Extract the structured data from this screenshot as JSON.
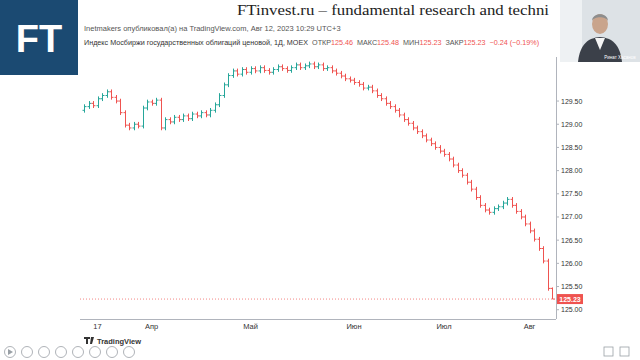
{
  "page": {
    "logo": "FT",
    "title": "FTinvest.ru – fundamental research and techni",
    "speaker": "Ринат Хасанов",
    "watermark": "TradingView"
  },
  "chart_data": {
    "type": "ohlc",
    "title": "Индекс Мосбиржи государственных облигаций ценовой, 1Д, MOEX",
    "subtitle": "Inetmakers опубликовал(а) на TradingView.com, Авг 12, 2023 10:29 UTC+3",
    "ohlc_labels": [
      "ОТКР",
      "МАКС",
      "МИН",
      "ЗАКР"
    ],
    "change_label": "−0.24 (−0.19%)",
    "grid": false,
    "categories": [
      null,
      null,
      null,
      "17",
      null,
      null,
      null,
      null,
      null,
      null,
      null,
      null,
      null,
      null,
      null,
      "Апр",
      null,
      null,
      null,
      null,
      null,
      null,
      null,
      null,
      null,
      null,
      null,
      null,
      null,
      null,
      null,
      null,
      null,
      null,
      null,
      null,
      null,
      "Май",
      null,
      null,
      null,
      null,
      null,
      null,
      null,
      null,
      null,
      null,
      null,
      null,
      null,
      null,
      null,
      null,
      null,
      null,
      null,
      null,
      null,
      null,
      "Июн",
      null,
      null,
      null,
      null,
      null,
      null,
      null,
      null,
      null,
      null,
      null,
      null,
      null,
      null,
      null,
      null,
      null,
      null,
      null,
      "Июл",
      null,
      null,
      null,
      null,
      null,
      null,
      null,
      null,
      null,
      null,
      null,
      null,
      null,
      null,
      null,
      null,
      null,
      null,
      "Авг",
      null,
      null,
      null,
      null,
      null
    ],
    "open": [
      129.3,
      129.38,
      129.45,
      129.4,
      129.55,
      129.62,
      129.7,
      129.58,
      129.5,
      129.25,
      128.98,
      128.92,
      129.0,
      128.96,
      129.35,
      129.48,
      129.45,
      129.52,
      128.92,
      129.1,
      129.05,
      129.15,
      129.1,
      129.18,
      129.12,
      129.22,
      129.18,
      129.25,
      129.2,
      129.3,
      129.42,
      129.62,
      129.85,
      130.05,
      130.15,
      130.08,
      130.18,
      130.12,
      130.2,
      130.15,
      130.22,
      130.16,
      130.12,
      130.18,
      130.24,
      130.2,
      130.16,
      130.22,
      130.28,
      130.22,
      130.26,
      130.3,
      130.24,
      130.28,
      130.2,
      130.22,
      130.15,
      130.1,
      130.04,
      129.98,
      129.95,
      129.9,
      129.86,
      129.78,
      129.8,
      129.72,
      129.62,
      129.55,
      129.45,
      129.38,
      129.3,
      129.2,
      129.1,
      129.02,
      128.92,
      128.84,
      128.75,
      128.66,
      128.58,
      128.5,
      128.42,
      128.35,
      128.25,
      128.12,
      128.0,
      127.9,
      127.75,
      127.6,
      127.42,
      127.25,
      127.15,
      127.1,
      127.18,
      127.22,
      127.3,
      127.38,
      127.25,
      127.12,
      127.0,
      126.85,
      126.7,
      126.52,
      126.32,
      126.05,
      125.46
    ],
    "high": [
      129.43,
      129.5,
      129.5,
      129.6,
      129.67,
      129.75,
      129.75,
      129.63,
      129.55,
      129.3,
      129.03,
      129.05,
      129.05,
      129.4,
      129.53,
      129.53,
      129.57,
      129.57,
      129.15,
      129.15,
      129.2,
      129.2,
      129.23,
      129.23,
      129.27,
      129.27,
      129.3,
      129.3,
      129.35,
      129.47,
      129.67,
      129.9,
      130.1,
      130.2,
      130.2,
      130.23,
      130.23,
      130.25,
      130.25,
      130.27,
      130.27,
      130.21,
      130.23,
      130.29,
      130.29,
      130.25,
      130.27,
      130.33,
      130.33,
      130.31,
      130.35,
      130.35,
      130.33,
      130.33,
      130.27,
      130.27,
      130.2,
      130.15,
      130.09,
      130.03,
      130.0,
      129.95,
      129.91,
      129.85,
      129.85,
      129.77,
      129.67,
      129.6,
      129.5,
      129.43,
      129.35,
      129.25,
      129.15,
      129.07,
      128.97,
      128.89,
      128.8,
      128.71,
      128.63,
      128.55,
      128.47,
      128.4,
      128.3,
      128.17,
      128.05,
      127.95,
      127.8,
      127.65,
      127.47,
      127.3,
      127.2,
      127.23,
      127.27,
      127.35,
      127.43,
      127.43,
      127.3,
      127.17,
      127.05,
      126.9,
      126.75,
      126.57,
      126.37,
      126.1,
      125.48
    ],
    "low": [
      129.25,
      129.33,
      129.35,
      129.35,
      129.5,
      129.57,
      129.53,
      129.45,
      129.2,
      128.93,
      128.87,
      128.87,
      128.91,
      128.91,
      129.3,
      129.4,
      129.4,
      128.87,
      128.87,
      129.0,
      129.0,
      129.05,
      129.05,
      129.07,
      129.07,
      129.13,
      129.13,
      129.15,
      129.15,
      129.25,
      129.37,
      129.57,
      129.8,
      130.0,
      130.03,
      130.03,
      130.07,
      130.07,
      130.1,
      130.1,
      130.11,
      130.07,
      130.07,
      130.13,
      130.15,
      130.11,
      130.11,
      130.17,
      130.17,
      130.17,
      130.21,
      130.19,
      130.19,
      130.15,
      130.15,
      130.1,
      130.05,
      129.99,
      129.93,
      129.9,
      129.85,
      129.81,
      129.73,
      129.73,
      129.67,
      129.57,
      129.5,
      129.4,
      129.33,
      129.25,
      129.15,
      129.05,
      128.97,
      128.87,
      128.79,
      128.7,
      128.61,
      128.53,
      128.45,
      128.37,
      128.3,
      128.2,
      128.07,
      127.95,
      127.85,
      127.7,
      127.55,
      127.37,
      127.2,
      127.1,
      127.05,
      127.05,
      127.13,
      127.17,
      127.25,
      127.2,
      127.07,
      126.95,
      126.8,
      126.65,
      126.47,
      126.27,
      126.0,
      125.41,
      125.23
    ],
    "close": [
      129.38,
      129.45,
      129.4,
      129.55,
      129.62,
      129.7,
      129.58,
      129.5,
      129.25,
      128.98,
      128.92,
      129.0,
      128.96,
      129.35,
      129.48,
      129.45,
      129.52,
      128.92,
      129.1,
      129.05,
      129.15,
      129.1,
      129.18,
      129.12,
      129.22,
      129.18,
      129.25,
      129.2,
      129.3,
      129.42,
      129.62,
      129.85,
      130.05,
      130.15,
      130.08,
      130.18,
      130.12,
      130.2,
      130.15,
      130.22,
      130.16,
      130.12,
      130.18,
      130.24,
      130.2,
      130.16,
      130.22,
      130.28,
      130.22,
      130.26,
      130.3,
      130.24,
      130.28,
      130.2,
      130.22,
      130.15,
      130.1,
      130.04,
      129.98,
      129.95,
      129.9,
      129.86,
      129.78,
      129.8,
      129.72,
      129.62,
      129.55,
      129.45,
      129.38,
      129.3,
      129.2,
      129.1,
      129.02,
      128.92,
      128.84,
      128.75,
      128.66,
      128.58,
      128.5,
      128.42,
      128.35,
      128.25,
      128.12,
      128.0,
      127.9,
      127.75,
      127.6,
      127.42,
      127.25,
      127.15,
      127.1,
      127.18,
      127.22,
      127.3,
      127.38,
      127.25,
      127.12,
      127.0,
      126.85,
      126.7,
      126.52,
      126.32,
      126.05,
      125.46,
      125.23
    ],
    "ylim": [
      124.8,
      130.45
    ],
    "yticks": [
      {
        "value": 125,
        "label": "125.00"
      },
      {
        "value": 125.5,
        "label": "125.50"
      },
      {
        "value": 126,
        "label": "126.00"
      },
      {
        "value": 126.5,
        "label": "126.50"
      },
      {
        "value": 127,
        "label": "127.00"
      },
      {
        "value": 127.5,
        "label": "127.50"
      },
      {
        "value": 128,
        "label": "128.00"
      },
      {
        "value": 128.5,
        "label": "128.50"
      },
      {
        "value": 129,
        "label": "129.00"
      },
      {
        "value": 129.5,
        "label": "129.50"
      }
    ]
  }
}
